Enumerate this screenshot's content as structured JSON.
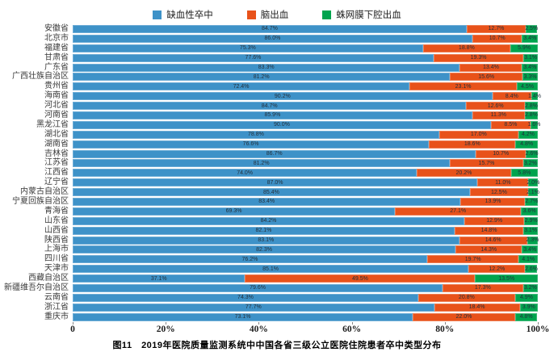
{
  "legend": [
    {
      "label": "缺血性卒中",
      "color": "#3E92C8"
    },
    {
      "label": "脑出血",
      "color": "#E8521A"
    },
    {
      "label": "蛛网膜下腔出血",
      "color": "#00A44E"
    }
  ],
  "caption": "图11　2019年医院质量监测系统中中国各省三级公立医院住院患者卒中类型分布",
  "chart_data": {
    "type": "bar",
    "orientation": "horizontal",
    "stacked": true,
    "unit": "%",
    "title": "2019年医院质量监测系统中中国各省三级公立医院住院患者卒中类型分布",
    "legend_position": "top",
    "xlim": [
      0,
      100
    ],
    "x_ticks": [
      "0",
      "20%",
      "40%",
      "60%",
      "80%",
      "100%"
    ],
    "categories": [
      "安徽省",
      "北京市",
      "福建省",
      "甘肃省",
      "广东省",
      "广西壮族自治区",
      "贵州省",
      "海南省",
      "河北省",
      "河南省",
      "黑龙江省",
      "湖北省",
      "湖南省",
      "吉林省",
      "江苏省",
      "江西省",
      "辽宁省",
      "内蒙古自治区",
      "宁夏回族自治区",
      "青海省",
      "山东省",
      "山西省",
      "陕西省",
      "上海市",
      "四川省",
      "天津市",
      "西藏自治区",
      "新疆维吾尔自治区",
      "云南省",
      "浙江省",
      "重庆市"
    ],
    "series": [
      {
        "name": "缺血性卒中",
        "color": "#3E92C8",
        "values": [
          84.7,
          86.0,
          75.3,
          77.6,
          83.3,
          81.2,
          72.4,
          90.2,
          84.7,
          85.9,
          90.0,
          78.8,
          76.6,
          86.7,
          81.2,
          74.0,
          87.0,
          85.4,
          83.4,
          69.3,
          84.2,
          82.1,
          83.1,
          82.3,
          76.2,
          85.1,
          37.1,
          79.6,
          74.3,
          77.7,
          73.1
        ]
      },
      {
        "name": "脑出血",
        "color": "#E8521A",
        "values": [
          12.7,
          10.7,
          18.8,
          19.3,
          13.4,
          15.6,
          23.1,
          8.4,
          12.6,
          11.3,
          8.5,
          17.0,
          18.6,
          10.7,
          15.7,
          20.2,
          11.0,
          12.5,
          13.9,
          27.1,
          12.9,
          14.8,
          14.6,
          14.3,
          19.7,
          12.2,
          49.5,
          17.3,
          20.8,
          18.4,
          22.0
        ]
      },
      {
        "name": "蛛网膜下腔出血",
        "color": "#00A44E",
        "values": [
          2.5,
          3.4,
          5.9,
          3.1,
          3.4,
          3.3,
          4.5,
          1.4,
          2.8,
          2.8,
          1.6,
          4.2,
          4.8,
          2.6,
          3.2,
          5.8,
          2.0,
          2.1,
          2.7,
          3.6,
          2.9,
          3.1,
          2.3,
          3.4,
          4.1,
          2.6,
          13.5,
          3.2,
          4.9,
          3.9,
          4.8
        ]
      }
    ]
  }
}
